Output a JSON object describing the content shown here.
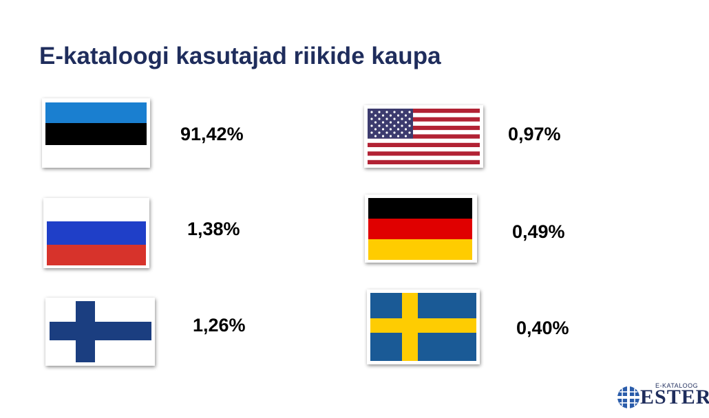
{
  "title": "E-kataloogi kasutajad riikide kaupa",
  "countries": [
    {
      "flag": "estonia-flag",
      "percent": "91,42%"
    },
    {
      "flag": "russia-flag",
      "percent": "1,38%"
    },
    {
      "flag": "finland-flag",
      "percent": "1,26%"
    },
    {
      "flag": "usa-flag",
      "percent": "0,97%"
    },
    {
      "flag": "germany-flag",
      "percent": "0,49%"
    },
    {
      "flag": "sweden-flag",
      "percent": "0,40%"
    }
  ],
  "logo": {
    "small_text": "E-KATALOOG",
    "big_text": "ESTER",
    "icon": "globe-icon"
  },
  "colors": {
    "title": "#1f2d5c",
    "estonia_blue": "#1a7fd0",
    "russia_blue": "#1f3fc8",
    "russia_red": "#d7332b",
    "finland_blue": "#1b3e80",
    "usa_red": "#b22234",
    "usa_blue": "#3c3b6e",
    "germany_red": "#e00000",
    "germany_gold": "#ffcc00",
    "sweden_blue": "#1a5a96",
    "sweden_yellow": "#fecc02"
  }
}
